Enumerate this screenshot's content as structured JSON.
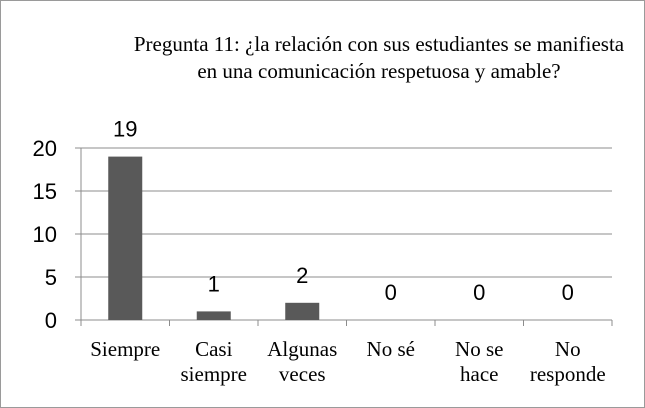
{
  "chart_data": {
    "type": "bar",
    "title": "Pregunta 11: ¿la relación con sus estudiantes se manifiesta en una comunicación respetuosa y amable?",
    "categories": [
      [
        "Siempre"
      ],
      [
        "Casi",
        "siempre"
      ],
      [
        "Algunas",
        "veces"
      ],
      [
        "No sé"
      ],
      [
        "No se",
        "hace"
      ],
      [
        "No",
        "responde"
      ]
    ],
    "values": [
      19,
      1,
      2,
      0,
      0,
      0
    ],
    "data_labels": [
      "19",
      "1",
      "2",
      "0",
      "0",
      "0"
    ],
    "ylim": [
      0,
      20
    ],
    "yticks": [
      0,
      5,
      10,
      15,
      20
    ],
    "grid": true,
    "bar_color": "#595959",
    "grid_color": "#8c8c8c"
  }
}
